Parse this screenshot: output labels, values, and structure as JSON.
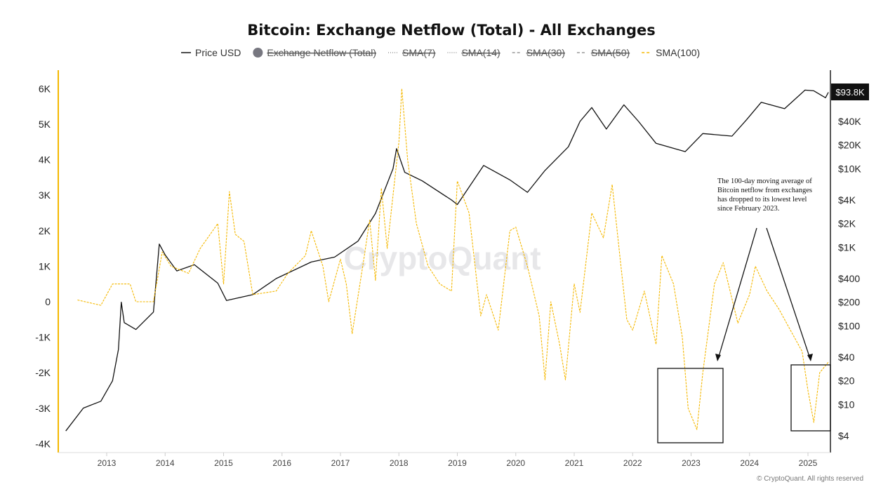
{
  "chart_data": {
    "type": "line",
    "title": "Bitcoin: Exchange Netflow (Total) - All Exchanges",
    "legend": [
      {
        "name": "Price USD",
        "style": "solid",
        "color": "#111111",
        "active": true
      },
      {
        "name": "Exchange Netflow (Total)",
        "style": "dot",
        "color": "#777780",
        "active": false
      },
      {
        "name": "SMA(7)",
        "style": "dotted",
        "color": "#999999",
        "active": false
      },
      {
        "name": "SMA(14)",
        "style": "dotted",
        "color": "#999999",
        "active": false
      },
      {
        "name": "SMA(30)",
        "style": "dashed",
        "color": "#999999",
        "active": false
      },
      {
        "name": "SMA(50)",
        "style": "dashed",
        "color": "#999999",
        "active": false
      },
      {
        "name": "SMA(100)",
        "style": "dashed",
        "color": "#f5b800",
        "active": true
      }
    ],
    "legend_placement": "top",
    "x_ticks": [
      "2013",
      "2014",
      "2015",
      "2016",
      "2017",
      "2018",
      "2019",
      "2020",
      "2021",
      "2022",
      "2023",
      "2024",
      "2025"
    ],
    "xlim": [
      2012.25,
      2025.45
    ],
    "left_axis": {
      "ticks": [
        "6K",
        "5K",
        "4K",
        "3K",
        "2K",
        "1K",
        "0",
        "-1K",
        "-2K",
        "-3K",
        "-4K"
      ],
      "ylim": [
        -4000,
        6000
      ],
      "color": "#f5b800"
    },
    "right_axis": {
      "scale": "log",
      "ticks": [
        "$40K",
        "$20K",
        "$10K",
        "$4K",
        "$2K",
        "$1K",
        "$400",
        "$200",
        "$100",
        "$40",
        "$20",
        "$10",
        "$4"
      ],
      "tick_values": [
        40000,
        20000,
        10000,
        4000,
        2000,
        1000,
        400,
        200,
        100,
        40,
        20,
        10,
        4
      ],
      "ylim": [
        4,
        100000
      ],
      "current_label": "$93.8K"
    },
    "grid": false,
    "series": [
      {
        "name": "Price USD",
        "axis": "right",
        "color": "#111111",
        "x": [
          2012.3,
          2012.6,
          2012.9,
          2013.1,
          2013.2,
          2013.25,
          2013.3,
          2013.5,
          2013.8,
          2013.9,
          2014.0,
          2014.2,
          2014.5,
          2014.9,
          2015.05,
          2015.5,
          2015.9,
          2016.5,
          2016.9,
          2017.3,
          2017.6,
          2017.9,
          2017.96,
          2018.1,
          2018.4,
          2018.9,
          2019.0,
          2019.45,
          2019.9,
          2020.2,
          2020.5,
          2020.9,
          2021.1,
          2021.3,
          2021.55,
          2021.85,
          2022.1,
          2022.4,
          2022.9,
          2023.2,
          2023.7,
          2023.95,
          2024.2,
          2024.6,
          2024.95,
          2025.1,
          2025.3,
          2025.35
        ],
        "y": [
          4.6,
          9,
          11,
          20,
          50,
          200,
          110,
          90,
          150,
          1100,
          800,
          500,
          600,
          350,
          210,
          250,
          400,
          650,
          750,
          1200,
          2700,
          10000,
          18000,
          9000,
          7000,
          4000,
          3500,
          11000,
          7200,
          5000,
          9500,
          19000,
          40000,
          60000,
          32000,
          65000,
          40000,
          21000,
          16500,
          28000,
          26000,
          42000,
          70000,
          58000,
          100000,
          98000,
          80000,
          93800
        ]
      },
      {
        "name": "SMA(100)",
        "axis": "left",
        "color": "#f5b800",
        "x": [
          2012.5,
          2012.9,
          2013.1,
          2013.4,
          2013.5,
          2013.8,
          2013.95,
          2014.1,
          2014.4,
          2014.6,
          2014.9,
          2015.0,
          2015.1,
          2015.2,
          2015.35,
          2015.5,
          2015.9,
          2016.1,
          2016.4,
          2016.5,
          2016.7,
          2016.8,
          2017.0,
          2017.1,
          2017.2,
          2017.4,
          2017.5,
          2017.6,
          2017.7,
          2017.8,
          2017.9,
          2018.0,
          2018.05,
          2018.15,
          2018.3,
          2018.5,
          2018.7,
          2018.9,
          2019.0,
          2019.2,
          2019.4,
          2019.5,
          2019.7,
          2019.9,
          2020.0,
          2020.2,
          2020.4,
          2020.5,
          2020.6,
          2020.75,
          2020.85,
          2021.0,
          2021.1,
          2021.3,
          2021.5,
          2021.65,
          2021.8,
          2021.9,
          2022.0,
          2022.2,
          2022.4,
          2022.5,
          2022.7,
          2022.85,
          2022.95,
          2023.1,
          2023.2,
          2023.4,
          2023.55,
          2023.8,
          2024.0,
          2024.1,
          2024.3,
          2024.5,
          2024.7,
          2024.9,
          2025.0,
          2025.1,
          2025.2,
          2025.35
        ],
        "y": [
          50,
          -100,
          500,
          500,
          0,
          0,
          1400,
          1000,
          800,
          1500,
          2200,
          500,
          3100,
          1900,
          1700,
          200,
          300,
          800,
          1300,
          2000,
          1000,
          0,
          1200,
          500,
          -900,
          1200,
          2300,
          600,
          3200,
          1500,
          3000,
          4500,
          6000,
          4000,
          2200,
          1000,
          500,
          300,
          3400,
          2500,
          -400,
          200,
          -800,
          2000,
          2100,
          1000,
          -400,
          -2200,
          0,
          -1200,
          -2200,
          500,
          -300,
          2500,
          1800,
          3300,
          1000,
          -500,
          -800,
          300,
          -1200,
          1300,
          500,
          -1000,
          -3000,
          -3600,
          -2000,
          500,
          1100,
          -600,
          200,
          1000,
          300,
          -200,
          -800,
          -1400,
          -2500,
          -3400,
          -2000,
          -1700
        ]
      }
    ],
    "annotation": "The 100-day moving average of Bitcoin netflow from exchanges has dropped to its lowest level since February 2023."
  },
  "watermark": "CryptoQuant",
  "footer": "© CryptoQuant. All rights reserved"
}
